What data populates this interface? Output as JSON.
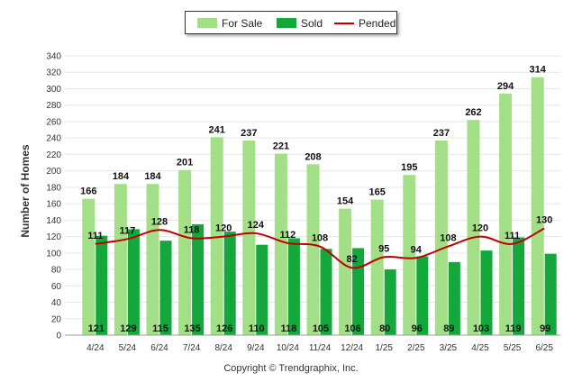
{
  "chart_data": {
    "type": "bar",
    "title": "",
    "xlabel": "",
    "ylabel": "Number of Homes",
    "ylim": [
      0,
      340
    ],
    "yticks": [
      0,
      20,
      40,
      60,
      80,
      100,
      120,
      140,
      160,
      180,
      200,
      220,
      240,
      260,
      280,
      300,
      320,
      340
    ],
    "grid": true,
    "legend_position": "top-center",
    "categories": [
      "4/24",
      "5/24",
      "6/24",
      "7/24",
      "8/24",
      "9/24",
      "10/24",
      "11/24",
      "12/24",
      "1/25",
      "2/25",
      "3/25",
      "4/25",
      "5/25",
      "6/25"
    ],
    "series": [
      {
        "name": "For Sale",
        "kind": "bar",
        "color": "#a3df87",
        "values": [
          166,
          184,
          184,
          201,
          241,
          237,
          221,
          208,
          154,
          165,
          195,
          237,
          262,
          294,
          314
        ]
      },
      {
        "name": "Sold",
        "kind": "bar",
        "color": "#14a83c",
        "values": [
          121,
          129,
          115,
          135,
          126,
          110,
          118,
          105,
          106,
          80,
          96,
          89,
          103,
          119,
          99
        ]
      },
      {
        "name": "Pended",
        "kind": "line",
        "color": "#c00000",
        "values": [
          111,
          117,
          128,
          118,
          120,
          124,
          112,
          108,
          82,
          95,
          94,
          108,
          120,
          111,
          130
        ]
      }
    ]
  },
  "footer": {
    "copyright": "Copyright © Trendgraphix, Inc."
  }
}
